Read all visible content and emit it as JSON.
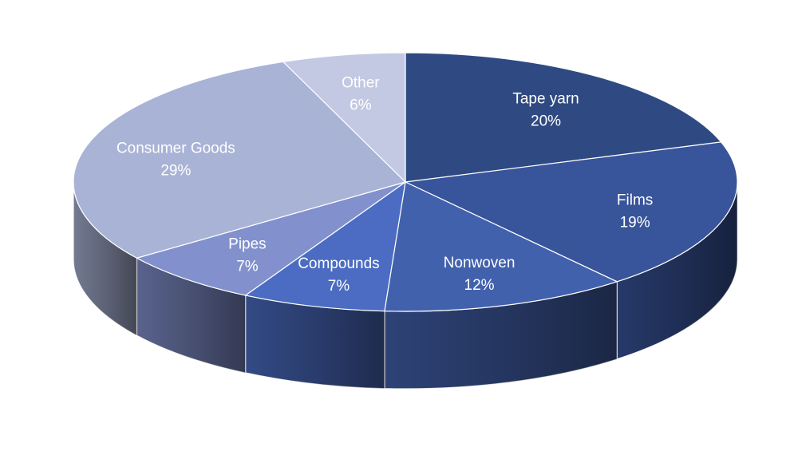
{
  "chart_data": {
    "type": "pie",
    "title": "",
    "style": "3d",
    "slices": [
      {
        "label": "Tape yarn",
        "value": 20,
        "value_label": "20%",
        "color": "#2f4a82"
      },
      {
        "label": "Films",
        "value": 19,
        "value_label": "19%",
        "color": "#38549a"
      },
      {
        "label": "Nonwoven",
        "value": 12,
        "value_label": "12%",
        "color": "#4261ad"
      },
      {
        "label": "Compounds",
        "value": 7,
        "value_label": "7%",
        "color": "#4b6cc2"
      },
      {
        "label": "Pipes",
        "value": 7,
        "value_label": "7%",
        "color": "#8291cd"
      },
      {
        "label": "Consumer Goods",
        "value": 29,
        "value_label": "29%",
        "color": "#a8b3d6"
      },
      {
        "label": "Other",
        "value": 6,
        "value_label": "6%",
        "color": "#c3c9e3"
      }
    ]
  }
}
